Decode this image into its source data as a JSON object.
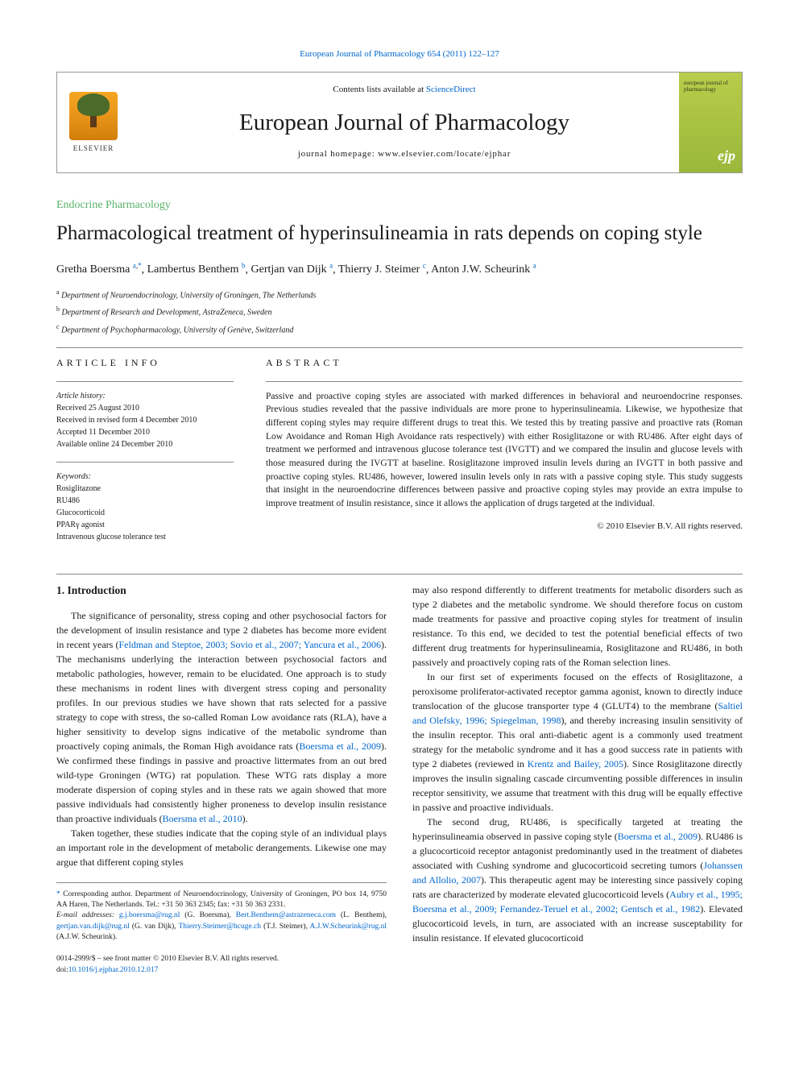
{
  "top_link": "European Journal of Pharmacology 654 (2011) 122–127",
  "header": {
    "contents_prefix": "Contents lists available at ",
    "contents_link": "ScienceDirect",
    "journal_name": "European Journal of Pharmacology",
    "homepage_prefix": "journal homepage: ",
    "homepage_url": "www.elsevier.com/locate/ejphar",
    "publisher": "ELSEVIER",
    "cover_text": "european journal of pharmacology",
    "cover_abbrev": "ejp"
  },
  "section_label": "Endocrine Pharmacology",
  "title": "Pharmacological treatment of hyperinsulineamia in rats depends on coping style",
  "authors": [
    {
      "name": "Gretha Boersma",
      "aff": "a",
      "corr": true
    },
    {
      "name": "Lambertus Benthem",
      "aff": "b",
      "corr": false
    },
    {
      "name": "Gertjan van Dijk",
      "aff": "a",
      "corr": false
    },
    {
      "name": "Thierry J. Steimer",
      "aff": "c",
      "corr": false
    },
    {
      "name": "Anton J.W. Scheurink",
      "aff": "a",
      "corr": false
    }
  ],
  "affiliations": [
    {
      "sup": "a",
      "text": "Department of Neuroendocrinology, University of Groningen, The Netherlands"
    },
    {
      "sup": "b",
      "text": "Department of Research and Development, AstraZeneca, Sweden"
    },
    {
      "sup": "c",
      "text": "Department of Psychopharmacology, University of Genève, Switzerland"
    }
  ],
  "info": {
    "heading_info": "ARTICLE INFO",
    "heading_abstract": "ABSTRACT",
    "history_label": "Article history:",
    "history": {
      "received": "Received 25 August 2010",
      "revised": "Received in revised form 4 December 2010",
      "accepted": "Accepted 11 December 2010",
      "online": "Available online 24 December 2010"
    },
    "keywords_label": "Keywords:",
    "keywords": [
      "Rosiglitazone",
      "RU486",
      "Glucocorticoid",
      "PPARγ agonist",
      "Intravenous glucose tolerance test"
    ]
  },
  "abstract": "Passive and proactive coping styles are associated with marked differences in behavioral and neuroendocrine responses. Previous studies revealed that the passive individuals are more prone to hyperinsulineamia. Likewise, we hypothesize that different coping styles may require different drugs to treat this. We tested this by treating passive and proactive rats (Roman Low Avoidance and Roman High Avoidance rats respectively) with either Rosiglitazone or with RU486. After eight days of treatment we performed and intravenous glucose tolerance test (IVGTT) and we compared the insulin and glucose levels with those measured during the IVGTT at baseline. Rosiglitazone improved insulin levels during an IVGTT in both passive and proactive coping styles. RU486, however, lowered insulin levels only in rats with a passive coping style. This study suggests that insight in the neuroendocrine differences between passive and proactive coping styles may provide an extra impulse to improve treatment of insulin resistance, since it allows the application of drugs targeted at the individual.",
  "copyright": "© 2010 Elsevier B.V. All rights reserved.",
  "intro_heading": "1. Introduction",
  "intro_left_p1a": "The significance of personality, stress coping and other psychosocial factors for the development of insulin resistance and type 2 diabetes has become more evident in recent years (",
  "intro_left_ref1": "Feldman and Steptoe, 2003; Sovio et al., 2007; Yancura et al., 2006",
  "intro_left_p1b": "). The mechanisms underlying the interaction between psychosocial factors and metabolic pathologies, however, remain to be elucidated. One approach is to study these mechanisms in rodent lines with divergent stress coping and personality profiles. In our previous studies we have shown that rats selected for a passive strategy to cope with stress, the so-called Roman Low avoidance rats (RLA), have a higher sensitivity to develop signs indicative of the metabolic syndrome than proactively coping animals, the Roman High avoidance rats (",
  "intro_left_ref2": "Boersma et al., 2009",
  "intro_left_p1c": "). We confirmed these findings in passive and proactive littermates from an out bred wild-type Groningen (WTG) rat population. These WTG rats display a more moderate dispersion of coping styles and in these rats we again showed that more passive individuals had consistently higher proneness to develop insulin resistance than proactive individuals (",
  "intro_left_ref3": "Boersma et al., 2010",
  "intro_left_p1d": ").",
  "intro_left_p2": "Taken together, these studies indicate that the coping style of an individual plays an important role in the development of metabolic derangements. Likewise one may argue that different coping styles",
  "intro_right_p1": "may also respond differently to different treatments for metabolic disorders such as type 2 diabetes and the metabolic syndrome. We should therefore focus on custom made treatments for passive and proactive coping styles for treatment of insulin resistance. To this end, we decided to test the potential beneficial effects of two different drug treatments for hyperinsulineamia, Rosiglitazone and RU486, in both passively and proactively coping rats of the Roman selection lines.",
  "intro_right_p2a": "In our first set of experiments focused on the effects of Rosiglitazone, a peroxisome proliferator-activated receptor gamma agonist, known to directly induce translocation of the glucose transporter type 4 (GLUT4) to the membrane (",
  "intro_right_ref1": "Saltiel and Olefsky, 1996; Spiegelman, 1998",
  "intro_right_p2b": "), and thereby increasing insulin sensitivity of the insulin receptor. This oral anti-diabetic agent is a commonly used treatment strategy for the metabolic syndrome and it has a good success rate in patients with type 2 diabetes (reviewed in ",
  "intro_right_ref2": "Krentz and Bailey, 2005",
  "intro_right_p2c": "). Since Rosiglitazone directly improves the insulin signaling cascade circumventing possible differences in insulin receptor sensitivity, we assume that treatment with this drug will be equally effective in passive and proactive individuals.",
  "intro_right_p3a": "The second drug, RU486, is specifically targeted at treating the hyperinsulineamia observed in passive coping style (",
  "intro_right_ref3": "Boersma et al., 2009",
  "intro_right_p3b": "). RU486 is a glucocorticoid receptor antagonist predominantly used in the treatment of diabetes associated with Cushing syndrome and glucocorticoid secreting tumors (",
  "intro_right_ref4": "Johanssen and Allolio, 2007",
  "intro_right_p3c": "). This therapeutic agent may be interesting since passively coping rats are characterized by moderate elevated glucocorticoid levels (",
  "intro_right_ref5": "Aubry et al., 1995; Boersma et al., 2009; Fernandez-Teruel et al., 2002; Gentsch et al., 1982",
  "intro_right_p3d": "). Elevated glucocorticoid levels, in turn, are associated with an increase susceptability for insulin resistance. If elevated glucocorticoid",
  "footnotes": {
    "corr_text": "Corresponding author. Department of Neuroendocrinology, University of Groningen, PO box 14, 9750 AA Haren, The Netherlands. Tel.: +31 50 363 2345; fax: +31 50 363 2331.",
    "email_label": "E-mail addresses:",
    "emails": [
      {
        "addr": "g.j.boersma@rug.nl",
        "name": "(G. Boersma),"
      },
      {
        "addr": "Bert.Benthem@astrazeneca.com",
        "name": "(L. Benthem),"
      },
      {
        "addr": "gertjan.van.dijk@rug.nl",
        "name": "(G. van Dijk),"
      },
      {
        "addr": "Thierry.Steimer@hcuge.ch",
        "name": "(T.J. Steimer),"
      },
      {
        "addr": "A.J.W.Scheurink@rug.nl",
        "name": "(A.J.W. Scheurink)."
      }
    ]
  },
  "bottom": {
    "front_matter": "0014-2999/$ – see front matter © 2010 Elsevier B.V. All rights reserved.",
    "doi_label": "doi:",
    "doi": "10.1016/j.ejphar.2010.12.017"
  }
}
